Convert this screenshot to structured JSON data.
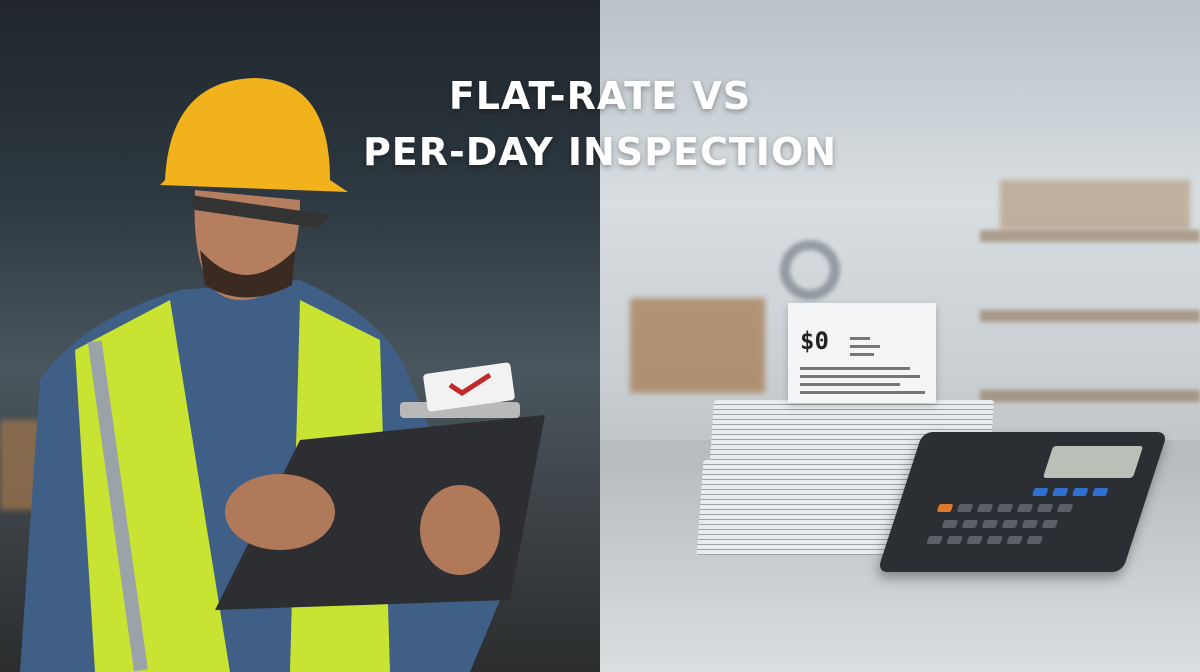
{
  "title": {
    "line1": "FLAT-RATE VS",
    "line2": "PER-DAY INSPECTION"
  },
  "document": {
    "amount": "$0"
  },
  "colors": {
    "hard_hat": "#f2b21c",
    "safety_vest": "#c8e332",
    "shirt": "#3f5f86",
    "clipboard": "#2c2e31",
    "calculator": "#2b2f33",
    "accent_key": "#e07a2a",
    "blue_key": "#2f6fd0"
  }
}
